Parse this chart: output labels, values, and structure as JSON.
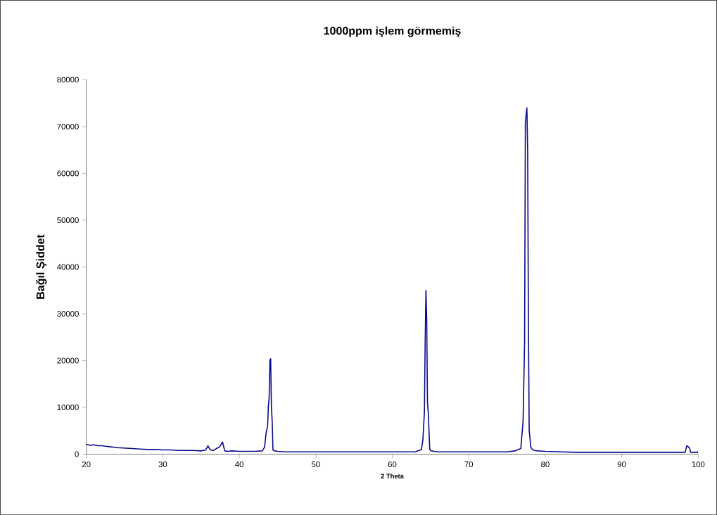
{
  "chart_data": {
    "type": "line",
    "title": "1000ppm işlem görmemiş",
    "xlabel": "2 Theta",
    "ylabel": "Bağıl Şiddet",
    "x": [
      20,
      20.5,
      21,
      21.5,
      22,
      22.5,
      23,
      23.5,
      24,
      25,
      26,
      27,
      28,
      29,
      30,
      31,
      32,
      33,
      34,
      35,
      35.6,
      35.9,
      36.2,
      36.6,
      37,
      37.4,
      37.8,
      38.1,
      38.5,
      39,
      40,
      41,
      42,
      43,
      43.3,
      43.5,
      43.7,
      43.8,
      43.9,
      44.0,
      44.1,
      44.2,
      44.3,
      44.4,
      44.6,
      45,
      46,
      48,
      50,
      52,
      54,
      56,
      58,
      60,
      62,
      63,
      63.8,
      64.0,
      64.2,
      64.3,
      64.4,
      64.5,
      64.6,
      64.7,
      64.8,
      64.9,
      65.1,
      65.5,
      66,
      68,
      70,
      72,
      74,
      75,
      76,
      76.8,
      77.1,
      77.3,
      77.4,
      77.5,
      77.6,
      77.7,
      77.8,
      77.9,
      78.0,
      78.1,
      78.3,
      78.6,
      79,
      80,
      82,
      84,
      86,
      88,
      90,
      92,
      94,
      96,
      98,
      98.3,
      98.5,
      98.7,
      98.9,
      99.0,
      99.5,
      99.9,
      100
    ],
    "values": [
      2100,
      1900,
      2000,
      1800,
      1800,
      1700,
      1600,
      1500,
      1400,
      1300,
      1200,
      1100,
      1000,
      1000,
      900,
      900,
      800,
      800,
      800,
      700,
      900,
      1800,
      900,
      800,
      1200,
      1500,
      2600,
      700,
      600,
      700,
      600,
      600,
      600,
      700,
      1500,
      4500,
      6000,
      10200,
      12000,
      20000,
      20400,
      10000,
      7000,
      900,
      700,
      600,
      500,
      500,
      500,
      500,
      500,
      500,
      500,
      500,
      500,
      500,
      1000,
      3000,
      9000,
      24000,
      35000,
      29000,
      11000,
      9000,
      5000,
      1000,
      700,
      600,
      500,
      500,
      500,
      500,
      500,
      500,
      700,
      1200,
      7000,
      24000,
      71000,
      72500,
      74000,
      65000,
      28000,
      5000,
      3500,
      1500,
      1000,
      800,
      700,
      600,
      500,
      400,
      400,
      400,
      400,
      400,
      400,
      400,
      400,
      400,
      1800,
      1600,
      1200,
      400,
      400,
      400,
      600
    ],
    "color": "#0a0a8c",
    "xlim": [
      20,
      100
    ],
    "ylim": [
      0,
      80000
    ],
    "xticks": [
      20,
      30,
      40,
      50,
      60,
      70,
      80,
      90,
      100
    ],
    "yticks": [
      0,
      10000,
      20000,
      30000,
      40000,
      50000,
      60000,
      70000,
      80000
    ],
    "grid": false,
    "marker": "none",
    "line_style": "solid"
  }
}
